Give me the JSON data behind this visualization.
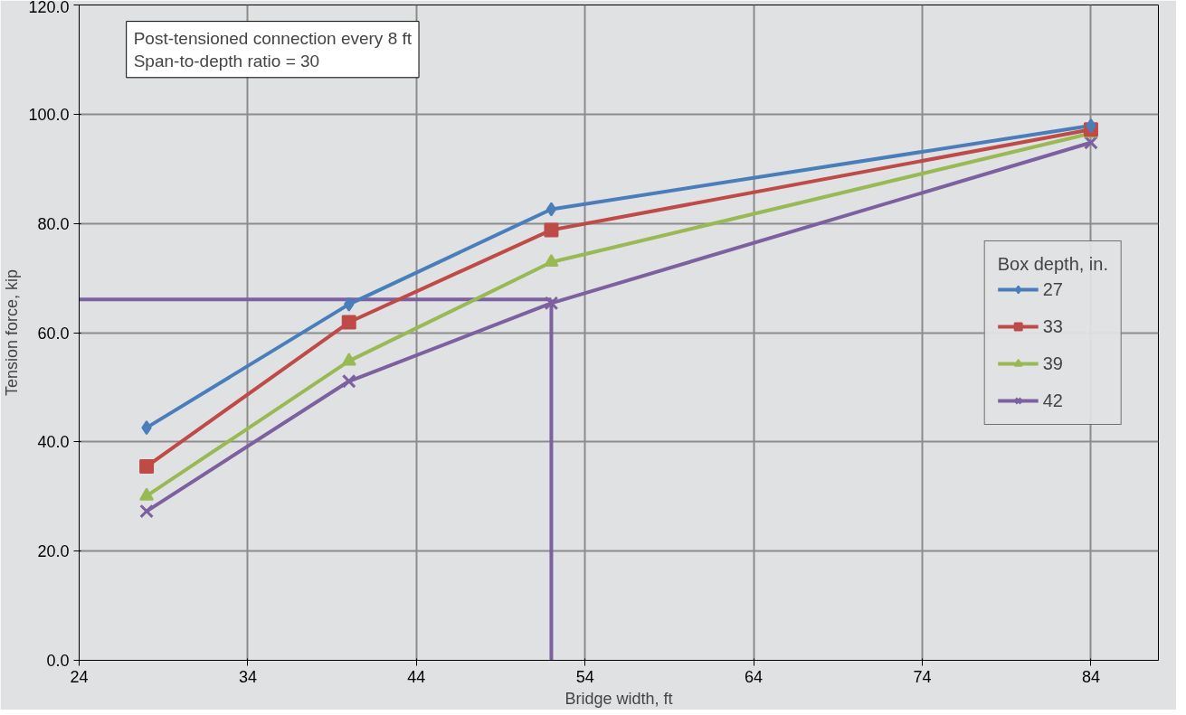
{
  "chart_data": {
    "type": "line",
    "xlabel": "Bridge width, ft",
    "ylabel": "Tension force, kip",
    "legend_title": "Box depth, in.",
    "x": [
      28,
      40,
      52,
      84
    ],
    "series": [
      {
        "name": "27",
        "color": "#4a7ebb",
        "marker": "diamond",
        "values": [
          42.6,
          65.2,
          82.6,
          97.9
        ]
      },
      {
        "name": "33",
        "color": "#be4b48",
        "marker": "square",
        "values": [
          35.5,
          61.9,
          78.8,
          97.2
        ]
      },
      {
        "name": "39",
        "color": "#98b954",
        "marker": "triangle",
        "values": [
          30.1,
          54.8,
          72.9,
          96.5
        ]
      },
      {
        "name": "42",
        "color": "#7d60a0",
        "marker": "x",
        "values": [
          27.3,
          51.1,
          65.4,
          94.8
        ]
      }
    ],
    "xlim": [
      24,
      88
    ],
    "xticks": [
      24,
      34,
      44,
      54,
      64,
      74,
      84
    ],
    "ylim": [
      0,
      120
    ],
    "yticks": [
      {
        "value": 0,
        "label": "0.0"
      },
      {
        "value": 20,
        "label": "20.0"
      },
      {
        "value": 40,
        "label": "40.0"
      },
      {
        "value": 60,
        "label": "60.0"
      },
      {
        "value": 80,
        "label": "80.0"
      },
      {
        "value": 100,
        "label": "100.0"
      },
      {
        "value": 120,
        "label": "120.0"
      }
    ],
    "ref_lines": [
      {
        "axis": "y",
        "value": 66.1,
        "color": "#7d60a0"
      },
      {
        "axis": "x",
        "value": 52,
        "color": "#7d60a0"
      }
    ],
    "annotations": [
      "Post-tensioned connection every 8 ft\nSpan-to-depth ratio = 30"
    ],
    "grid": true,
    "legend": "right",
    "line_style": "solid"
  }
}
